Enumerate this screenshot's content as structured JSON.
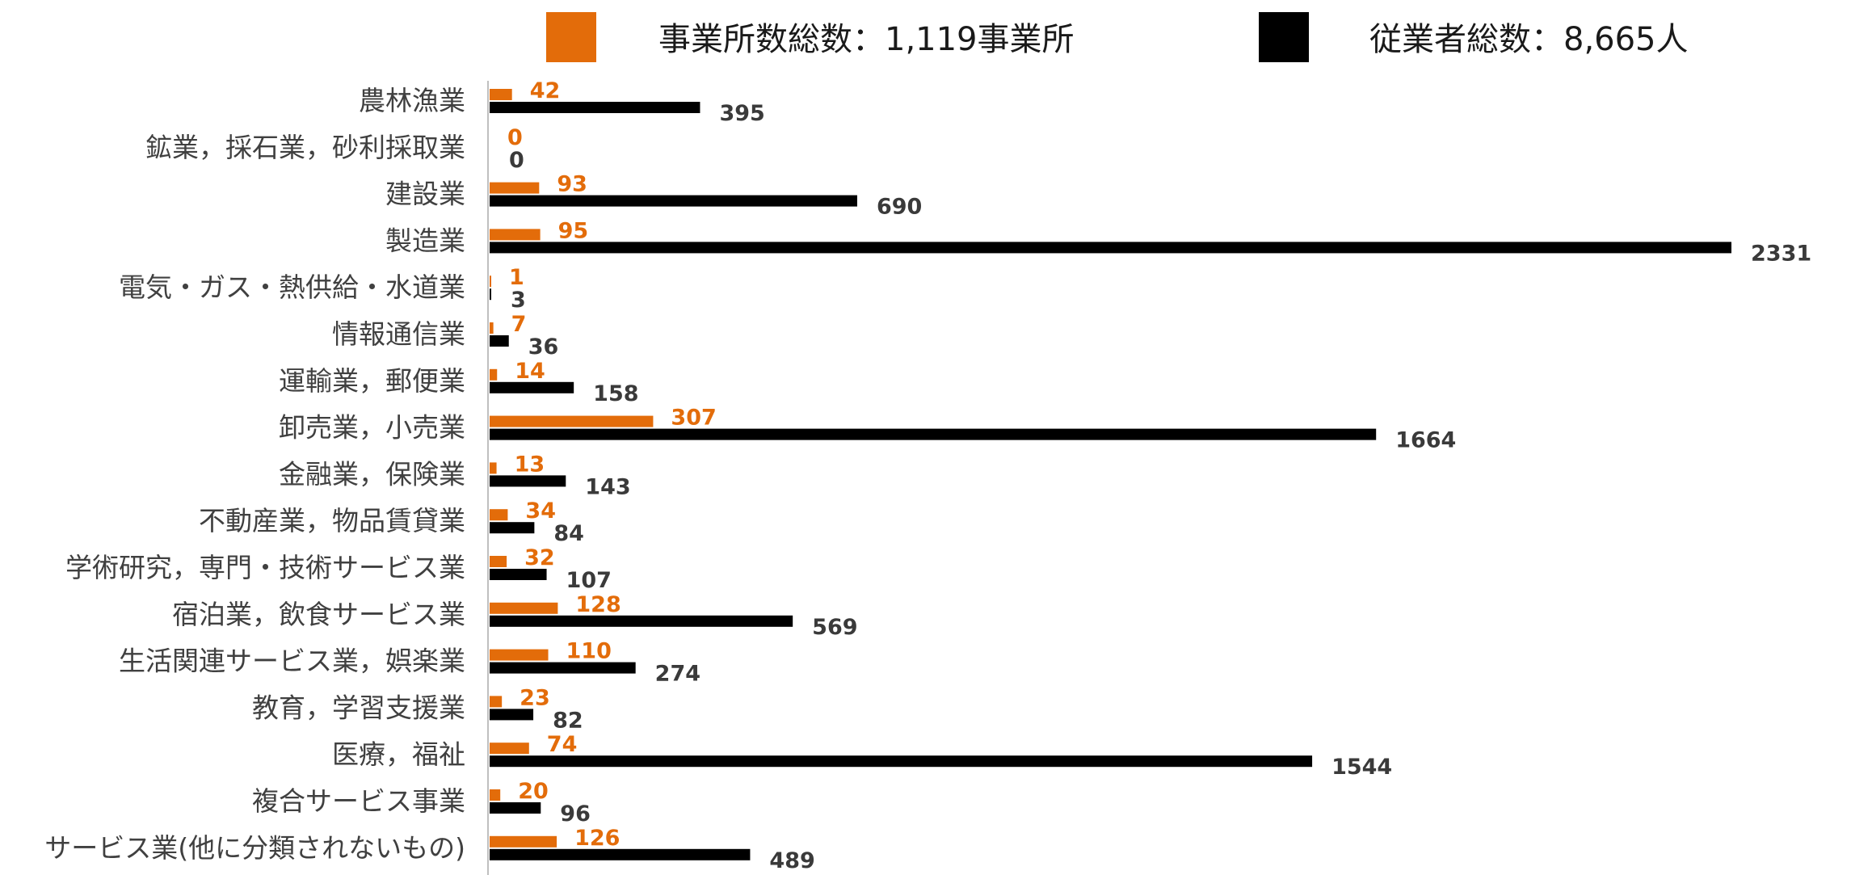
{
  "chart_data": {
    "type": "bar",
    "orientation": "horizontal",
    "categories": [
      "農林漁業",
      "鉱業，採石業，砂利採取業",
      "建設業",
      "製造業",
      "電気・ガス・熱供給・水道業",
      "情報通信業",
      "運輸業，郵便業",
      "卸売業，小売業",
      "金融業，保険業",
      "不動産業，物品賃貸業",
      "学術研究，専門・技術サービス業",
      "宿泊業，飲食サービス業",
      "生活関連サービス業，娯楽業",
      "教育，学習支援業",
      "医療，福祉",
      "複合サービス事業",
      "サービス業(他に分類されないもの)"
    ],
    "series": [
      {
        "name": "事業所数総数：1,119事業所",
        "color": "#E36C0A",
        "values": [
          42,
          0,
          93,
          95,
          1,
          7,
          14,
          307,
          13,
          34,
          32,
          128,
          110,
          23,
          74,
          20,
          126
        ]
      },
      {
        "name": "従業者総数：8,665人",
        "color": "#000000",
        "values": [
          395,
          0,
          690,
          2331,
          3,
          36,
          158,
          1664,
          143,
          84,
          107,
          569,
          274,
          82,
          1544,
          96,
          489
        ]
      }
    ],
    "xlim": [
      0,
      2331
    ],
    "legend_position": "top",
    "grid": false,
    "data_labels": true
  }
}
